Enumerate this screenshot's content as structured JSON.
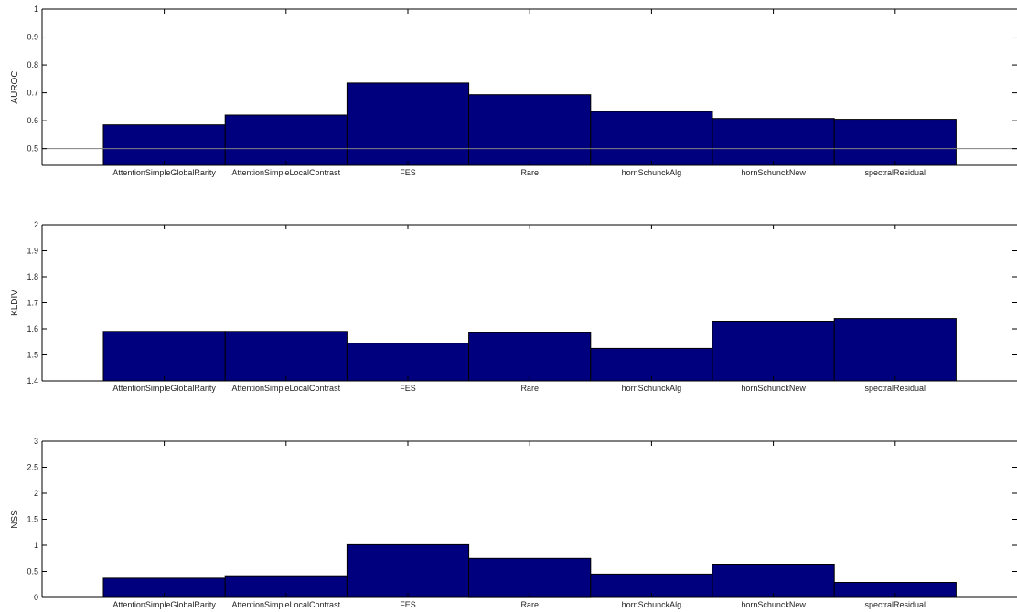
{
  "chart_data": [
    {
      "type": "bar",
      "ylabel": "AUROC",
      "ylim": [
        0.44,
        1
      ],
      "yticks": [
        0.5,
        0.6,
        0.7,
        0.8,
        0.9,
        1
      ],
      "ytick_labels": [
        "0.5",
        "0.6",
        "0.7",
        "0.8",
        "0.9",
        "1"
      ],
      "baseline": 0.5,
      "categories": [
        "AttentionSimpleGlobalRarity",
        "AttentionSimpleLocalContrast",
        "FES",
        "Rare",
        "hornSchunckAlg",
        "hornSchunckNew",
        "spectralResidual"
      ],
      "values": [
        0.585,
        0.62,
        0.735,
        0.693,
        0.633,
        0.608,
        0.605
      ],
      "grid": false,
      "bar_color": "#00007f"
    },
    {
      "type": "bar",
      "ylabel": "KLDIV",
      "ylim": [
        1.4,
        2
      ],
      "yticks": [
        1.4,
        1.5,
        1.6,
        1.7,
        1.8,
        1.9,
        2
      ],
      "ytick_labels": [
        "1.4",
        "1.5",
        "1.6",
        "1.7",
        "1.8",
        "1.9",
        "2"
      ],
      "categories": [
        "AttentionSimpleGlobalRarity",
        "AttentionSimpleLocalContrast",
        "FES",
        "Rare",
        "hornSchunckAlg",
        "hornSchunckNew",
        "spectralResidual"
      ],
      "values": [
        1.59,
        1.59,
        1.545,
        1.585,
        1.525,
        1.63,
        1.64
      ],
      "grid": false,
      "bar_color": "#00007f"
    },
    {
      "type": "bar",
      "ylabel": "NSS",
      "ylim": [
        0,
        3
      ],
      "yticks": [
        0,
        0.5,
        1,
        1.5,
        2,
        2.5,
        3
      ],
      "ytick_labels": [
        "0",
        "0.5",
        "1",
        "1.5",
        "2",
        "2.5",
        "3"
      ],
      "categories": [
        "AttentionSimpleGlobalRarity",
        "AttentionSimpleLocalContrast",
        "FES",
        "Rare",
        "hornSchunckAlg",
        "hornSchunckNew",
        "spectralResidual"
      ],
      "values": [
        0.37,
        0.4,
        1.01,
        0.75,
        0.45,
        0.64,
        0.29
      ],
      "grid": false,
      "bar_color": "#00007f"
    }
  ]
}
